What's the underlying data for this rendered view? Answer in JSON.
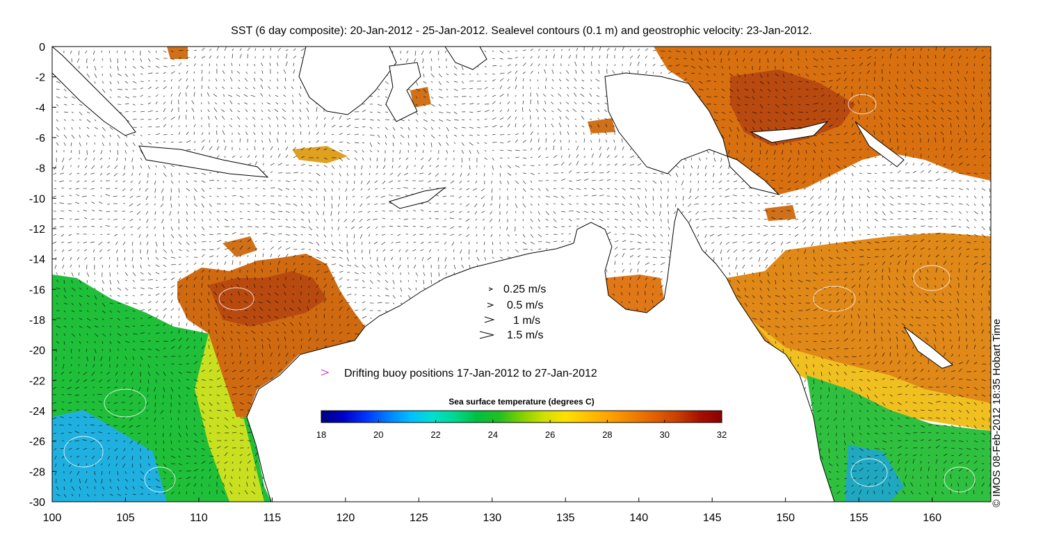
{
  "title": "SST (6 day composite): 20-Jan-2012 - 25-Jan-2012. Sealevel contours (0.1 m) and geostrophic velocity: 23-Jan-2012.",
  "credit": "© IMOS 08-Feb-2012 18:35 Hobart Time",
  "axes": {
    "x_ticks": [
      "100",
      "105",
      "110",
      "115",
      "120",
      "125",
      "130",
      "135",
      "140",
      "145",
      "150",
      "155",
      "160"
    ],
    "y_ticks": [
      "0",
      "-2",
      "-4",
      "-6",
      "-8",
      "-10",
      "-12",
      "-14",
      "-16",
      "-18",
      "-20",
      "-22",
      "-24",
      "-26",
      "-28",
      "-30"
    ],
    "x_range": [
      100,
      164
    ],
    "y_range": [
      -30,
      0
    ]
  },
  "velocity_legend": [
    {
      "label": "0.25 m/s",
      "speed": 0.25
    },
    {
      "label": "0.5 m/s",
      "speed": 0.5
    },
    {
      "label": "1 m/s",
      "speed": 1
    },
    {
      "label": "1.5 m/s",
      "speed": 1.5
    }
  ],
  "buoy_legend": {
    "label": "Drifting buoy positions 17-Jan-2012 to 27-Jan-2012",
    "color": "#cc33cc"
  },
  "colorbar": {
    "title": "Sea surface temperature (degrees C)",
    "ticks": [
      "18",
      "20",
      "22",
      "24",
      "26",
      "28",
      "30",
      "32"
    ],
    "range": [
      18,
      32
    ],
    "colors": [
      "#00007f",
      "#0000c8",
      "#0033ff",
      "#0080ff",
      "#00bfff",
      "#00e0d0",
      "#00d890",
      "#00c040",
      "#20c020",
      "#80d000",
      "#d0e000",
      "#ffe000",
      "#ffc000",
      "#ffa000",
      "#f08000",
      "#e06000",
      "#c84000",
      "#a81000",
      "#8b0000"
    ]
  },
  "colors": {
    "land_outline": "#000000",
    "no_data": "#ffffff",
    "contour": "#ffffff",
    "arrow": "#000000"
  }
}
